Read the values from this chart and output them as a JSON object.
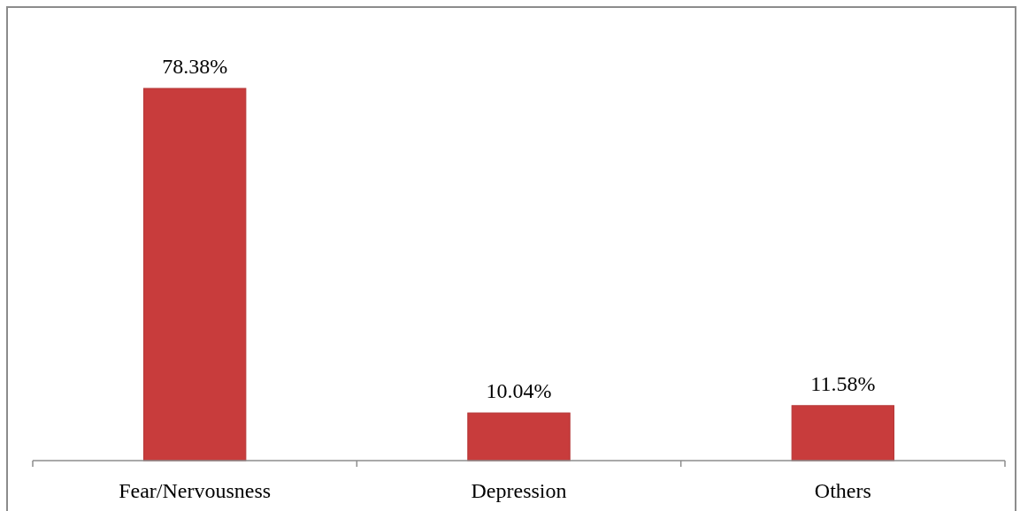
{
  "chart_data": {
    "type": "bar",
    "categories": [
      "Fear/Nervousness",
      "Depression",
      "Others"
    ],
    "values": [
      78.38,
      10.04,
      11.58
    ],
    "color": "#c83c3c",
    "value_labels": [
      "78.38%",
      "10.04%",
      "11.58%"
    ]
  }
}
